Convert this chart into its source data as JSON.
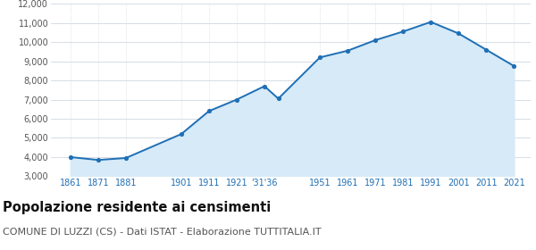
{
  "years": [
    1861,
    1871,
    1881,
    1901,
    1911,
    1921,
    1931,
    1936,
    1951,
    1961,
    1971,
    1981,
    1991,
    2001,
    2011,
    2021
  ],
  "population": [
    4000,
    3850,
    3950,
    5200,
    6400,
    7000,
    7700,
    7050,
    9200,
    9550,
    10100,
    10550,
    11050,
    10450,
    9600,
    8750
  ],
  "x_tick_positions": [
    1861,
    1871,
    1881,
    1901,
    1911,
    1921,
    1931,
    1951,
    1961,
    1971,
    1981,
    1991,
    2001,
    2011,
    2021
  ],
  "x_tick_labels": [
    "1861",
    "1871",
    "1881",
    "1901",
    "1911",
    "1921",
    "'31'36",
    "1951",
    "1961",
    "1971",
    "1981",
    "1991",
    "2001",
    "2011",
    "2021"
  ],
  "ylim": [
    3000,
    12000
  ],
  "yticks": [
    3000,
    4000,
    5000,
    6000,
    7000,
    8000,
    9000,
    10000,
    11000,
    12000
  ],
  "ytick_labels": [
    "3,000",
    "4,000",
    "5,000",
    "6,000",
    "7,000",
    "8,000",
    "9,000",
    "10,000",
    "11,000",
    "12,000"
  ],
  "line_color": "#1f6fb5",
  "fill_color": "#d6eaf8",
  "marker_color": "#1f6fb5",
  "grid_color": "#d0d8e0",
  "background_color": "#FFFFFF",
  "title": "Popolazione residente ai censimenti",
  "subtitle": "COMUNE DI LUZZI (CS) - Dati ISTAT - Elaborazione TUTTITALIA.IT",
  "title_fontsize": 10.5,
  "subtitle_fontsize": 8,
  "title_color": "#111111",
  "subtitle_color": "#555555",
  "axis_label_color": "#1f6fb5",
  "ytick_color": "#555555"
}
